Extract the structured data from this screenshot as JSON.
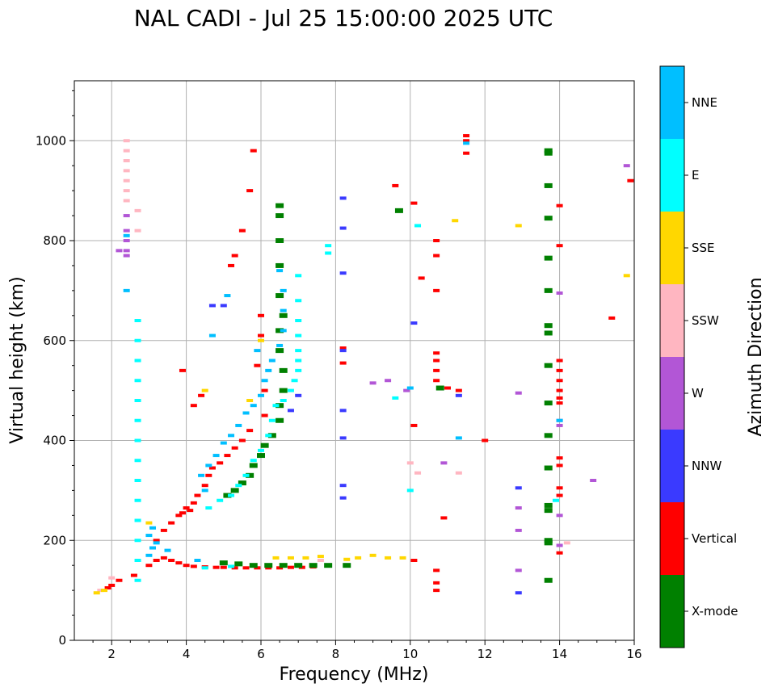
{
  "chart_data": {
    "type": "scatter",
    "title": "NAL CADI - Jul 25 15:00:00 2025 UTC",
    "xlabel": "Frequency (MHz)",
    "ylabel": "Virtual height (km)",
    "xlim": [
      1,
      16
    ],
    "ylim": [
      0,
      1120
    ],
    "xticks": [
      2,
      4,
      6,
      8,
      10,
      12,
      14,
      16
    ],
    "yticks": [
      0,
      200,
      400,
      600,
      800,
      1000
    ],
    "grid": true,
    "colorbar": {
      "title": "Azimuth Direction",
      "categories": [
        {
          "name": "X-mode",
          "color": "#008000"
        },
        {
          "name": "Vertical",
          "color": "#ff0000"
        },
        {
          "name": "NNW",
          "color": "#3a3aff"
        },
        {
          "name": "W",
          "color": "#b256d6"
        },
        {
          "name": "SSW",
          "color": "#ffb6c1"
        },
        {
          "name": "SSE",
          "color": "#ffd700"
        },
        {
          "name": "E",
          "color": "#00ffff"
        },
        {
          "name": "NNE",
          "color": "#00bfff"
        }
      ]
    },
    "series": [
      {
        "name": "Vertical",
        "color": "#ff0000",
        "points": [
          [
            1.9,
            105
          ],
          [
            2.0,
            110
          ],
          [
            2.2,
            120
          ],
          [
            2.6,
            130
          ],
          [
            3.0,
            150
          ],
          [
            3.2,
            160
          ],
          [
            3.4,
            165
          ],
          [
            3.6,
            160
          ],
          [
            3.8,
            155
          ],
          [
            4.0,
            150
          ],
          [
            4.2,
            148
          ],
          [
            4.5,
            147
          ],
          [
            4.8,
            146
          ],
          [
            5.0,
            146
          ],
          [
            5.3,
            145
          ],
          [
            5.6,
            145
          ],
          [
            5.9,
            145
          ],
          [
            6.2,
            145
          ],
          [
            6.5,
            145
          ],
          [
            6.8,
            146
          ],
          [
            7.1,
            146
          ],
          [
            7.4,
            147
          ],
          [
            3.2,
            200
          ],
          [
            3.4,
            220
          ],
          [
            3.6,
            235
          ],
          [
            3.8,
            250
          ],
          [
            3.9,
            255
          ],
          [
            4.0,
            265
          ],
          [
            4.1,
            260
          ],
          [
            4.2,
            275
          ],
          [
            4.3,
            290
          ],
          [
            4.5,
            310
          ],
          [
            4.6,
            330
          ],
          [
            4.7,
            345
          ],
          [
            4.9,
            355
          ],
          [
            5.1,
            370
          ],
          [
            5.3,
            385
          ],
          [
            5.5,
            400
          ],
          [
            5.7,
            420
          ],
          [
            3.9,
            540
          ],
          [
            4.2,
            470
          ],
          [
            4.4,
            490
          ],
          [
            5.2,
            750
          ],
          [
            5.3,
            770
          ],
          [
            5.5,
            820
          ],
          [
            5.7,
            900
          ],
          [
            5.8,
            980
          ],
          [
            6.0,
            610
          ],
          [
            6.0,
            650
          ],
          [
            5.9,
            550
          ],
          [
            6.1,
            450
          ],
          [
            6.1,
            500
          ],
          [
            8.2,
            555
          ],
          [
            8.2,
            585
          ],
          [
            9.6,
            910
          ],
          [
            10.1,
            875
          ],
          [
            10.1,
            430
          ],
          [
            10.1,
            160
          ],
          [
            10.3,
            725
          ],
          [
            10.7,
            800
          ],
          [
            10.7,
            770
          ],
          [
            10.7,
            700
          ],
          [
            10.7,
            575
          ],
          [
            10.7,
            560
          ],
          [
            10.7,
            540
          ],
          [
            10.7,
            520
          ],
          [
            10.7,
            140
          ],
          [
            10.7,
            115
          ],
          [
            10.7,
            100
          ],
          [
            11.0,
            505
          ],
          [
            11.3,
            500
          ],
          [
            11.5,
            1010
          ],
          [
            11.5,
            1000
          ],
          [
            11.5,
            975
          ],
          [
            10.9,
            245
          ],
          [
            12.0,
            400
          ],
          [
            14.0,
            870
          ],
          [
            14.0,
            790
          ],
          [
            14.0,
            560
          ],
          [
            14.0,
            540
          ],
          [
            14.0,
            520
          ],
          [
            14.0,
            500
          ],
          [
            14.0,
            485
          ],
          [
            14.0,
            475
          ],
          [
            14.0,
            365
          ],
          [
            14.0,
            350
          ],
          [
            14.0,
            305
          ],
          [
            14.0,
            290
          ],
          [
            14.0,
            175
          ],
          [
            15.4,
            645
          ],
          [
            15.9,
            920
          ]
        ]
      },
      {
        "name": "X-mode",
        "color": "#008000",
        "points": [
          [
            5.0,
            155
          ],
          [
            5.4,
            153
          ],
          [
            5.8,
            150
          ],
          [
            6.2,
            150
          ],
          [
            6.6,
            150
          ],
          [
            7.0,
            150
          ],
          [
            7.4,
            150
          ],
          [
            7.8,
            150
          ],
          [
            8.3,
            150
          ],
          [
            5.1,
            290
          ],
          [
            5.3,
            300
          ],
          [
            5.5,
            315
          ],
          [
            5.7,
            330
          ],
          [
            5.8,
            350
          ],
          [
            6.0,
            370
          ],
          [
            6.1,
            390
          ],
          [
            6.3,
            410
          ],
          [
            6.5,
            440
          ],
          [
            6.5,
            470
          ],
          [
            6.6,
            500
          ],
          [
            6.6,
            540
          ],
          [
            6.5,
            580
          ],
          [
            6.5,
            620
          ],
          [
            6.6,
            650
          ],
          [
            6.5,
            690
          ],
          [
            6.5,
            750
          ],
          [
            6.5,
            800
          ],
          [
            6.5,
            850
          ],
          [
            6.5,
            870
          ],
          [
            9.7,
            860
          ],
          [
            10.8,
            505
          ],
          [
            13.7,
            980
          ],
          [
            13.7,
            975
          ],
          [
            13.7,
            910
          ],
          [
            13.7,
            845
          ],
          [
            13.7,
            765
          ],
          [
            13.7,
            700
          ],
          [
            13.7,
            630
          ],
          [
            13.7,
            615
          ],
          [
            13.7,
            550
          ],
          [
            13.7,
            475
          ],
          [
            13.7,
            410
          ],
          [
            13.7,
            345
          ],
          [
            13.7,
            270
          ],
          [
            13.7,
            260
          ],
          [
            13.7,
            200
          ],
          [
            13.7,
            195
          ],
          [
            13.7,
            120
          ]
        ]
      },
      {
        "name": "NNW",
        "color": "#3a3aff",
        "points": [
          [
            8.2,
            885
          ],
          [
            8.2,
            825
          ],
          [
            8.2,
            735
          ],
          [
            8.2,
            580
          ],
          [
            8.2,
            460
          ],
          [
            8.2,
            405
          ],
          [
            8.2,
            310
          ],
          [
            8.2,
            285
          ],
          [
            10.1,
            635
          ],
          [
            11.3,
            490
          ],
          [
            12.9,
            305
          ],
          [
            12.9,
            95
          ],
          [
            6.8,
            460
          ],
          [
            7.0,
            490
          ],
          [
            5.0,
            670
          ],
          [
            4.7,
            670
          ]
        ]
      },
      {
        "name": "W",
        "color": "#b256d6",
        "points": [
          [
            2.4,
            850
          ],
          [
            2.4,
            820
          ],
          [
            2.4,
            800
          ],
          [
            2.4,
            780
          ],
          [
            2.4,
            770
          ],
          [
            2.2,
            780
          ],
          [
            9.0,
            515
          ],
          [
            9.4,
            520
          ],
          [
            9.9,
            500
          ],
          [
            10.9,
            355
          ],
          [
            12.9,
            495
          ],
          [
            12.9,
            265
          ],
          [
            12.9,
            220
          ],
          [
            12.9,
            140
          ],
          [
            14.0,
            695
          ],
          [
            14.0,
            440
          ],
          [
            14.0,
            430
          ],
          [
            14.0,
            250
          ],
          [
            14.0,
            190
          ],
          [
            14.9,
            320
          ],
          [
            15.8,
            950
          ]
        ]
      },
      {
        "name": "SSW",
        "color": "#ffb6c1",
        "points": [
          [
            2.4,
            1000
          ],
          [
            2.4,
            980
          ],
          [
            2.4,
            960
          ],
          [
            2.4,
            940
          ],
          [
            2.4,
            920
          ],
          [
            2.4,
            900
          ],
          [
            2.4,
            880
          ],
          [
            2.7,
            860
          ],
          [
            2.7,
            820
          ],
          [
            10.0,
            355
          ],
          [
            10.2,
            335
          ],
          [
            11.3,
            335
          ],
          [
            14.2,
            195
          ],
          [
            2.0,
            125
          ],
          [
            1.7,
            100
          ],
          [
            7.6,
            160
          ]
        ]
      },
      {
        "name": "SSE",
        "color": "#ffd700",
        "points": [
          [
            6.4,
            165
          ],
          [
            6.8,
            165
          ],
          [
            7.2,
            165
          ],
          [
            7.6,
            168
          ],
          [
            8.3,
            162
          ],
          [
            8.6,
            165
          ],
          [
            9.0,
            170
          ],
          [
            9.4,
            165
          ],
          [
            9.8,
            165
          ],
          [
            11.2,
            840
          ],
          [
            12.9,
            830
          ],
          [
            15.8,
            730
          ],
          [
            1.6,
            95
          ],
          [
            1.8,
            100
          ],
          [
            3.0,
            235
          ],
          [
            6.0,
            600
          ],
          [
            4.5,
            500
          ],
          [
            5.7,
            480
          ]
        ]
      },
      {
        "name": "E",
        "color": "#00ffff",
        "points": [
          [
            4.6,
            265
          ],
          [
            4.9,
            280
          ],
          [
            5.2,
            290
          ],
          [
            5.4,
            310
          ],
          [
            5.6,
            330
          ],
          [
            5.8,
            360
          ],
          [
            6.0,
            380
          ],
          [
            6.2,
            410
          ],
          [
            6.3,
            440
          ],
          [
            6.4,
            470
          ],
          [
            6.6,
            480
          ],
          [
            6.8,
            500
          ],
          [
            6.9,
            520
          ],
          [
            7.0,
            540
          ],
          [
            7.0,
            560
          ],
          [
            7.0,
            580
          ],
          [
            7.0,
            610
          ],
          [
            7.0,
            640
          ],
          [
            7.0,
            680
          ],
          [
            7.0,
            730
          ],
          [
            7.8,
            790
          ],
          [
            7.8,
            775
          ],
          [
            10.2,
            830
          ],
          [
            10.0,
            300
          ],
          [
            9.6,
            485
          ],
          [
            13.9,
            280
          ],
          [
            2.7,
            640
          ],
          [
            2.7,
            600
          ],
          [
            2.7,
            560
          ],
          [
            2.7,
            520
          ],
          [
            2.7,
            480
          ],
          [
            2.7,
            440
          ],
          [
            2.7,
            400
          ],
          [
            2.7,
            360
          ],
          [
            2.7,
            320
          ],
          [
            2.7,
            280
          ],
          [
            2.7,
            240
          ],
          [
            2.7,
            200
          ],
          [
            2.7,
            160
          ],
          [
            2.7,
            120
          ],
          [
            4.5,
            145
          ],
          [
            5.2,
            148
          ]
        ]
      },
      {
        "name": "NNE",
        "color": "#00bfff",
        "points": [
          [
            5.0,
            395
          ],
          [
            5.2,
            410
          ],
          [
            5.4,
            430
          ],
          [
            5.6,
            455
          ],
          [
            5.8,
            470
          ],
          [
            6.0,
            490
          ],
          [
            6.1,
            520
          ],
          [
            6.2,
            540
          ],
          [
            6.3,
            560
          ],
          [
            6.5,
            590
          ],
          [
            6.6,
            620
          ],
          [
            6.6,
            660
          ],
          [
            6.6,
            700
          ],
          [
            6.5,
            740
          ],
          [
            4.4,
            330
          ],
          [
            4.6,
            350
          ],
          [
            4.8,
            370
          ],
          [
            4.5,
            300
          ],
          [
            3.0,
            170
          ],
          [
            3.1,
            185
          ],
          [
            3.2,
            195
          ],
          [
            3.0,
            210
          ],
          [
            3.1,
            225
          ],
          [
            3.5,
            180
          ],
          [
            11.5,
            995
          ],
          [
            11.3,
            405
          ],
          [
            10.0,
            505
          ],
          [
            14.0,
            440
          ],
          [
            2.4,
            810
          ],
          [
            2.4,
            700
          ],
          [
            4.7,
            610
          ],
          [
            5.1,
            690
          ],
          [
            5.9,
            580
          ],
          [
            4.3,
            160
          ]
        ]
      }
    ]
  }
}
